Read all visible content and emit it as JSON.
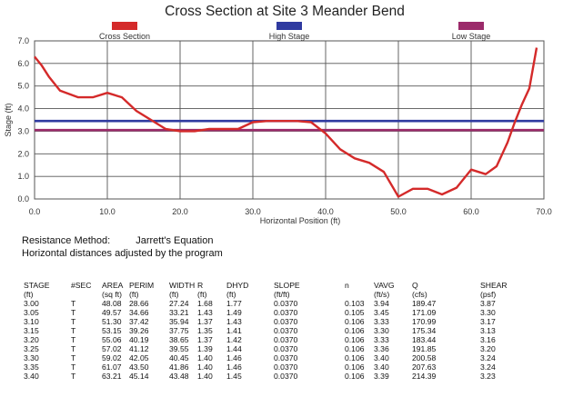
{
  "chart_data": {
    "type": "line",
    "title": "Cross Section at Site 3 Meander Bend",
    "xlabel": "Horizontal Position (ft)",
    "ylabel": "Stage (ft)",
    "xlim": [
      0,
      70
    ],
    "ylim": [
      0,
      7.0
    ],
    "xticks": [
      0,
      10,
      20,
      30,
      40,
      50,
      60,
      70
    ],
    "xtick_labels": [
      "0.0",
      "10.0",
      "20.0",
      "30.0",
      "40.0",
      "50.0",
      "60.0",
      "70.0"
    ],
    "yticks": [
      0,
      1,
      2,
      3,
      4,
      5,
      6,
      7
    ],
    "ytick_labels": [
      "0.0",
      "1.0",
      "2.0",
      "3.0",
      "4.0",
      "5.0",
      "6.0",
      "7.0"
    ],
    "grid": true,
    "legend": [
      {
        "name": "Cross Section",
        "color": "#d42a2a"
      },
      {
        "name": "High Stage",
        "color": "#2f3aa0"
      },
      {
        "name": "Low Stage",
        "color": "#9b2a6a"
      }
    ],
    "series": [
      {
        "name": "Cross Section",
        "color": "#d42a2a",
        "x": [
          0,
          1,
          2,
          3.5,
          6,
          8,
          10,
          12,
          14,
          16,
          18,
          20,
          22,
          24,
          26,
          28,
          30,
          32,
          34,
          36,
          38,
          40,
          42,
          44,
          46,
          48,
          50,
          52,
          54,
          56,
          58,
          60,
          62,
          63.5,
          65,
          66,
          67,
          68,
          69
        ],
        "y": [
          6.3,
          5.9,
          5.4,
          4.8,
          4.5,
          4.5,
          4.7,
          4.5,
          3.9,
          3.5,
          3.1,
          3.0,
          3.0,
          3.1,
          3.1,
          3.1,
          3.4,
          3.45,
          3.45,
          3.45,
          3.4,
          2.9,
          2.2,
          1.8,
          1.6,
          1.2,
          0.1,
          0.45,
          0.45,
          0.2,
          0.5,
          1.3,
          1.1,
          1.45,
          2.5,
          3.4,
          4.2,
          4.9,
          6.7
        ]
      },
      {
        "name": "High Stage",
        "color": "#2f3aa0",
        "x": [
          0,
          70
        ],
        "y": [
          3.45,
          3.45
        ]
      },
      {
        "name": "Low Stage",
        "color": "#9b2a6a",
        "x": [
          0,
          70
        ],
        "y": [
          3.05,
          3.05
        ]
      }
    ]
  },
  "notes": {
    "method_label": "Resistance Method:",
    "method_value": "Jarrett's Equation",
    "adjusted": "Horizontal distances adjusted by the program"
  },
  "table": {
    "headers": [
      "STAGE",
      "#SEC",
      "AREA",
      "PERIM",
      "WIDTH",
      "R",
      "DHYD",
      "SLOPE",
      "n",
      "VAVG",
      "Q",
      "SHEAR"
    ],
    "units": [
      "(ft)",
      "",
      "(sq ft)",
      "(ft)",
      "(ft)",
      "(ft)",
      "(ft)",
      "(ft/ft)",
      "",
      "(ft/s)",
      "(cfs)",
      "(psf)"
    ],
    "rows": [
      [
        "3.00",
        "T",
        "48.08",
        "28.66",
        "27.24",
        "1.68",
        "1.77",
        "0.0370",
        "0.103",
        "3.94",
        "189.47",
        "3.87"
      ],
      [
        "3.05",
        "T",
        "49.57",
        "34.66",
        "33.21",
        "1.43",
        "1.49",
        "0.0370",
        "0.105",
        "3.45",
        "171.09",
        "3.30"
      ],
      [
        "3.10",
        "T",
        "51.30",
        "37.42",
        "35.94",
        "1.37",
        "1.43",
        "0.0370",
        "0.106",
        "3.33",
        "170.99",
        "3.17"
      ],
      [
        "3.15",
        "T",
        "53.15",
        "39.26",
        "37.75",
        "1.35",
        "1.41",
        "0.0370",
        "0.106",
        "3.30",
        "175.34",
        "3.13"
      ],
      [
        "3.20",
        "T",
        "55.06",
        "40.19",
        "38.65",
        "1.37",
        "1.42",
        "0.0370",
        "0.106",
        "3.33",
        "183.44",
        "3.16"
      ],
      [
        "3.25",
        "T",
        "57.02",
        "41.12",
        "39.55",
        "1.39",
        "1.44",
        "0.0370",
        "0.106",
        "3.36",
        "191.85",
        "3.20"
      ],
      [
        "3.30",
        "T",
        "59.02",
        "42.05",
        "40.45",
        "1.40",
        "1.46",
        "0.0370",
        "0.106",
        "3.40",
        "200.58",
        "3.24"
      ],
      [
        "3.35",
        "T",
        "61.07",
        "43.50",
        "41.86",
        "1.40",
        "1.46",
        "0.0370",
        "0.106",
        "3.40",
        "207.63",
        "3.24"
      ],
      [
        "3.40",
        "T",
        "63.21",
        "45.14",
        "43.48",
        "1.40",
        "1.45",
        "0.0370",
        "0.106",
        "3.39",
        "214.39",
        "3.23"
      ]
    ]
  }
}
